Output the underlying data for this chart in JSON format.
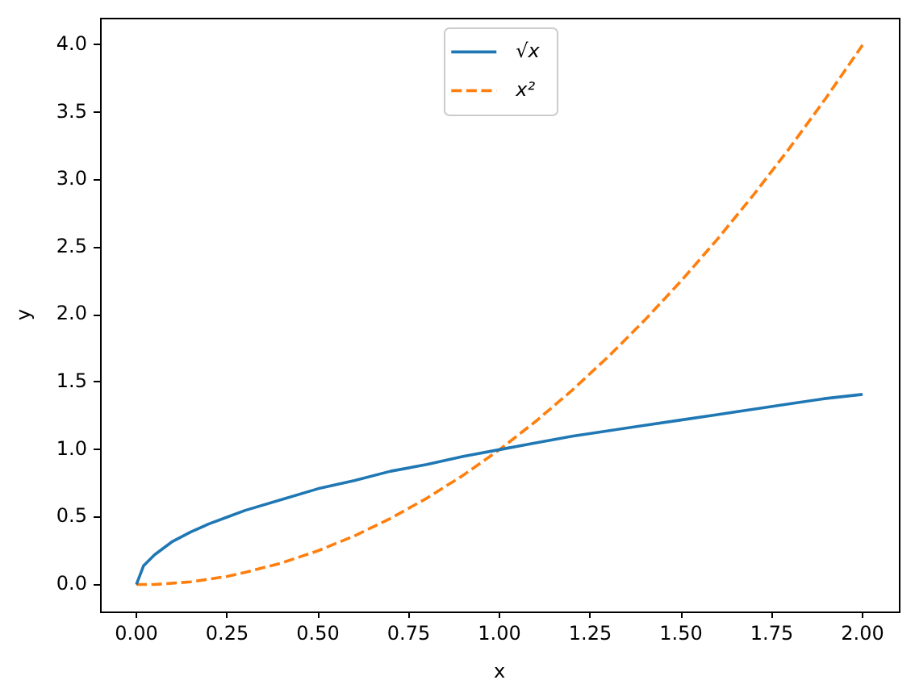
{
  "chart_data": {
    "type": "line",
    "xlabel": "x",
    "ylabel": "y",
    "x": [
      0,
      0.02,
      0.05,
      0.1,
      0.15,
      0.2,
      0.25,
      0.3,
      0.4,
      0.5,
      0.6,
      0.7,
      0.8,
      0.9,
      1.0,
      1.1,
      1.2,
      1.3,
      1.4,
      1.5,
      1.6,
      1.7,
      1.8,
      1.9,
      2.0
    ],
    "series": [
      {
        "name": "√x",
        "color": "#1f77b4",
        "line_style": "solid",
        "values": [
          0,
          0.14,
          0.22,
          0.32,
          0.39,
          0.45,
          0.5,
          0.55,
          0.63,
          0.71,
          0.77,
          0.84,
          0.89,
          0.95,
          1.0,
          1.05,
          1.1,
          1.14,
          1.18,
          1.22,
          1.26,
          1.3,
          1.34,
          1.38,
          1.41
        ]
      },
      {
        "name": "x²",
        "color": "#ff7f0e",
        "line_style": "dashed",
        "values": [
          0,
          0,
          0,
          0.01,
          0.02,
          0.04,
          0.06,
          0.09,
          0.16,
          0.25,
          0.36,
          0.49,
          0.64,
          0.81,
          1.0,
          1.21,
          1.44,
          1.69,
          1.96,
          2.25,
          2.56,
          2.89,
          3.24,
          3.61,
          4.0
        ]
      }
    ],
    "xlim": [
      -0.1,
      2.1
    ],
    "ylim": [
      -0.2,
      4.2
    ],
    "xticks": [
      {
        "value": 0,
        "label": "0.00"
      },
      {
        "value": 0.25,
        "label": "0.25"
      },
      {
        "value": 0.5,
        "label": "0.50"
      },
      {
        "value": 0.75,
        "label": "0.75"
      },
      {
        "value": 1,
        "label": "1.00"
      },
      {
        "value": 1.25,
        "label": "1.25"
      },
      {
        "value": 1.5,
        "label": "1.50"
      },
      {
        "value": 1.75,
        "label": "1.75"
      },
      {
        "value": 2,
        "label": "2.00"
      }
    ],
    "yticks": [
      {
        "value": 0,
        "label": "0.0"
      },
      0.5,
      {
        "value": 1,
        "label": "1.0"
      },
      1.5,
      {
        "value": 2,
        "label": "2.0"
      },
      2.5,
      {
        "value": 3,
        "label": "3.0"
      },
      3.5,
      {
        "value": 4,
        "label": "4.0"
      }
    ],
    "legend": "top"
  }
}
